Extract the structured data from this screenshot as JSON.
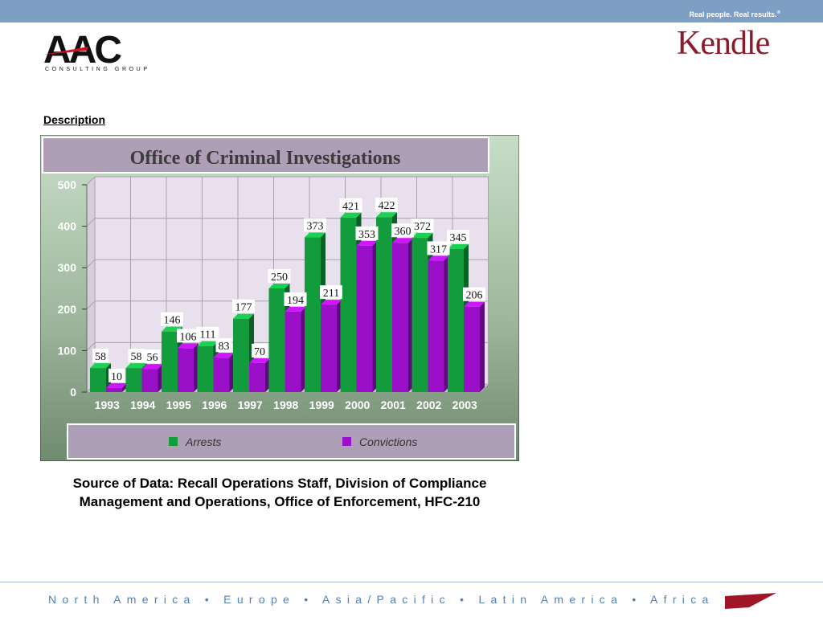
{
  "header": {
    "tagline": "Real people. Real results.",
    "tagline_mark": "®",
    "logo_left": "AAC",
    "logo_left_sub": "CONSULTING GROUP",
    "logo_right": "Kendle"
  },
  "description_label": "Description",
  "chart_data": {
    "type": "bar",
    "title": "Office of Criminal Investigations",
    "categories": [
      "1993",
      "1994",
      "1995",
      "1996",
      "1997",
      "1998",
      "1999",
      "2000",
      "2001",
      "2002",
      "2003"
    ],
    "series": [
      {
        "name": "Arrests",
        "color": "#129c3c",
        "values": [
          58,
          58,
          146,
          111,
          177,
          250,
          373,
          421,
          422,
          372,
          345
        ]
      },
      {
        "name": "Convictions",
        "color": "#9a10c8",
        "values": [
          10,
          56,
          106,
          83,
          70,
          194,
          211,
          353,
          360,
          317,
          206
        ]
      }
    ],
    "yticks": [
      "0",
      "100",
      "200",
      "300",
      "400",
      "500"
    ],
    "ylim": [
      0,
      500
    ],
    "grid": true,
    "legend_position": "bottom"
  },
  "source_text": {
    "line1": "Source of Data: Recall Operations Staff, Division of Compliance",
    "line2": "Management and Operations, Office of Enforcement, HFC-210"
  },
  "footer": {
    "regions": "North America • Europe • Asia/Pacific • Latin America • Africa"
  }
}
